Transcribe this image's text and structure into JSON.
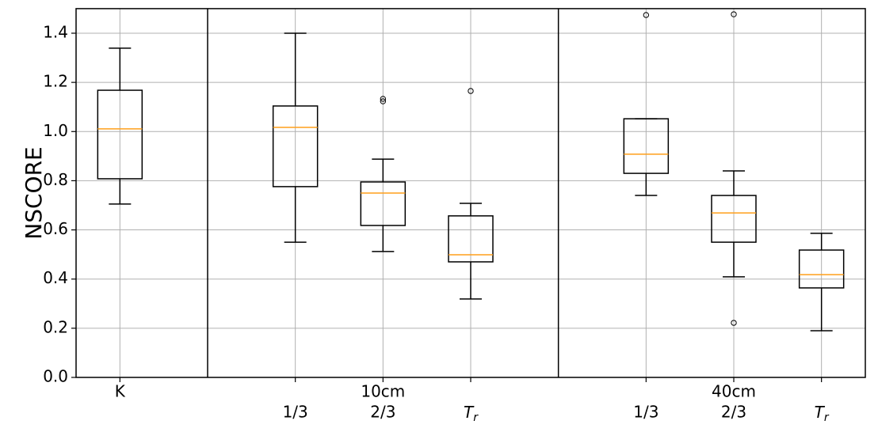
{
  "chart_data": {
    "type": "box",
    "ylabel": "NSCORE",
    "categories": [
      "K",
      "1/3",
      "2/3",
      "T_r",
      "1/3",
      "2/3",
      "T_r"
    ],
    "x": [
      1,
      3,
      4,
      5,
      7,
      8,
      9
    ],
    "xlim": [
      0.5,
      9.5
    ],
    "groups": [
      {
        "label": "10cm",
        "x": 4
      },
      {
        "label": "40cm",
        "x": 8
      }
    ],
    "separators": [
      2,
      6
    ],
    "ylim": [
      0,
      1.5
    ],
    "yticks": [
      {
        "value": 0,
        "label": "0.0"
      },
      0.2,
      0.4,
      0.6,
      0.8,
      {
        "value": 1,
        "label": "1.0"
      },
      1.2,
      1.4
    ],
    "grid": true,
    "box_color": "#000000",
    "median_color": "#ff9f1a",
    "boxes": [
      {
        "whislo": 0.705,
        "q1": 0.808,
        "med": 1.011,
        "q3": 1.168,
        "whishi": 1.339,
        "fliers": []
      },
      {
        "whislo": 0.55,
        "q1": 0.776,
        "med": 1.017,
        "q3": 1.104,
        "whishi": 1.4,
        "fliers": []
      },
      {
        "whislo": 0.512,
        "q1": 0.618,
        "med": 0.75,
        "q3": 0.795,
        "whishi": 0.888,
        "fliers": [
          1.133,
          1.123
        ]
      },
      {
        "whislo": 0.319,
        "q1": 0.47,
        "med": 0.499,
        "q3": 0.657,
        "whishi": 0.708,
        "fliers": [
          1.165
        ]
      },
      {
        "whislo": 0.74,
        "q1": 0.83,
        "med": 0.908,
        "q3": 1.052,
        "whishi": 1.052,
        "fliers": [
          1.474
        ]
      },
      {
        "whislo": 0.409,
        "q1": 0.55,
        "med": 0.669,
        "q3": 0.74,
        "whishi": 0.84,
        "fliers": [
          1.477,
          0.222
        ]
      },
      {
        "whislo": 0.19,
        "q1": 0.364,
        "med": 0.418,
        "q3": 0.518,
        "whishi": 0.586,
        "fliers": []
      }
    ]
  }
}
